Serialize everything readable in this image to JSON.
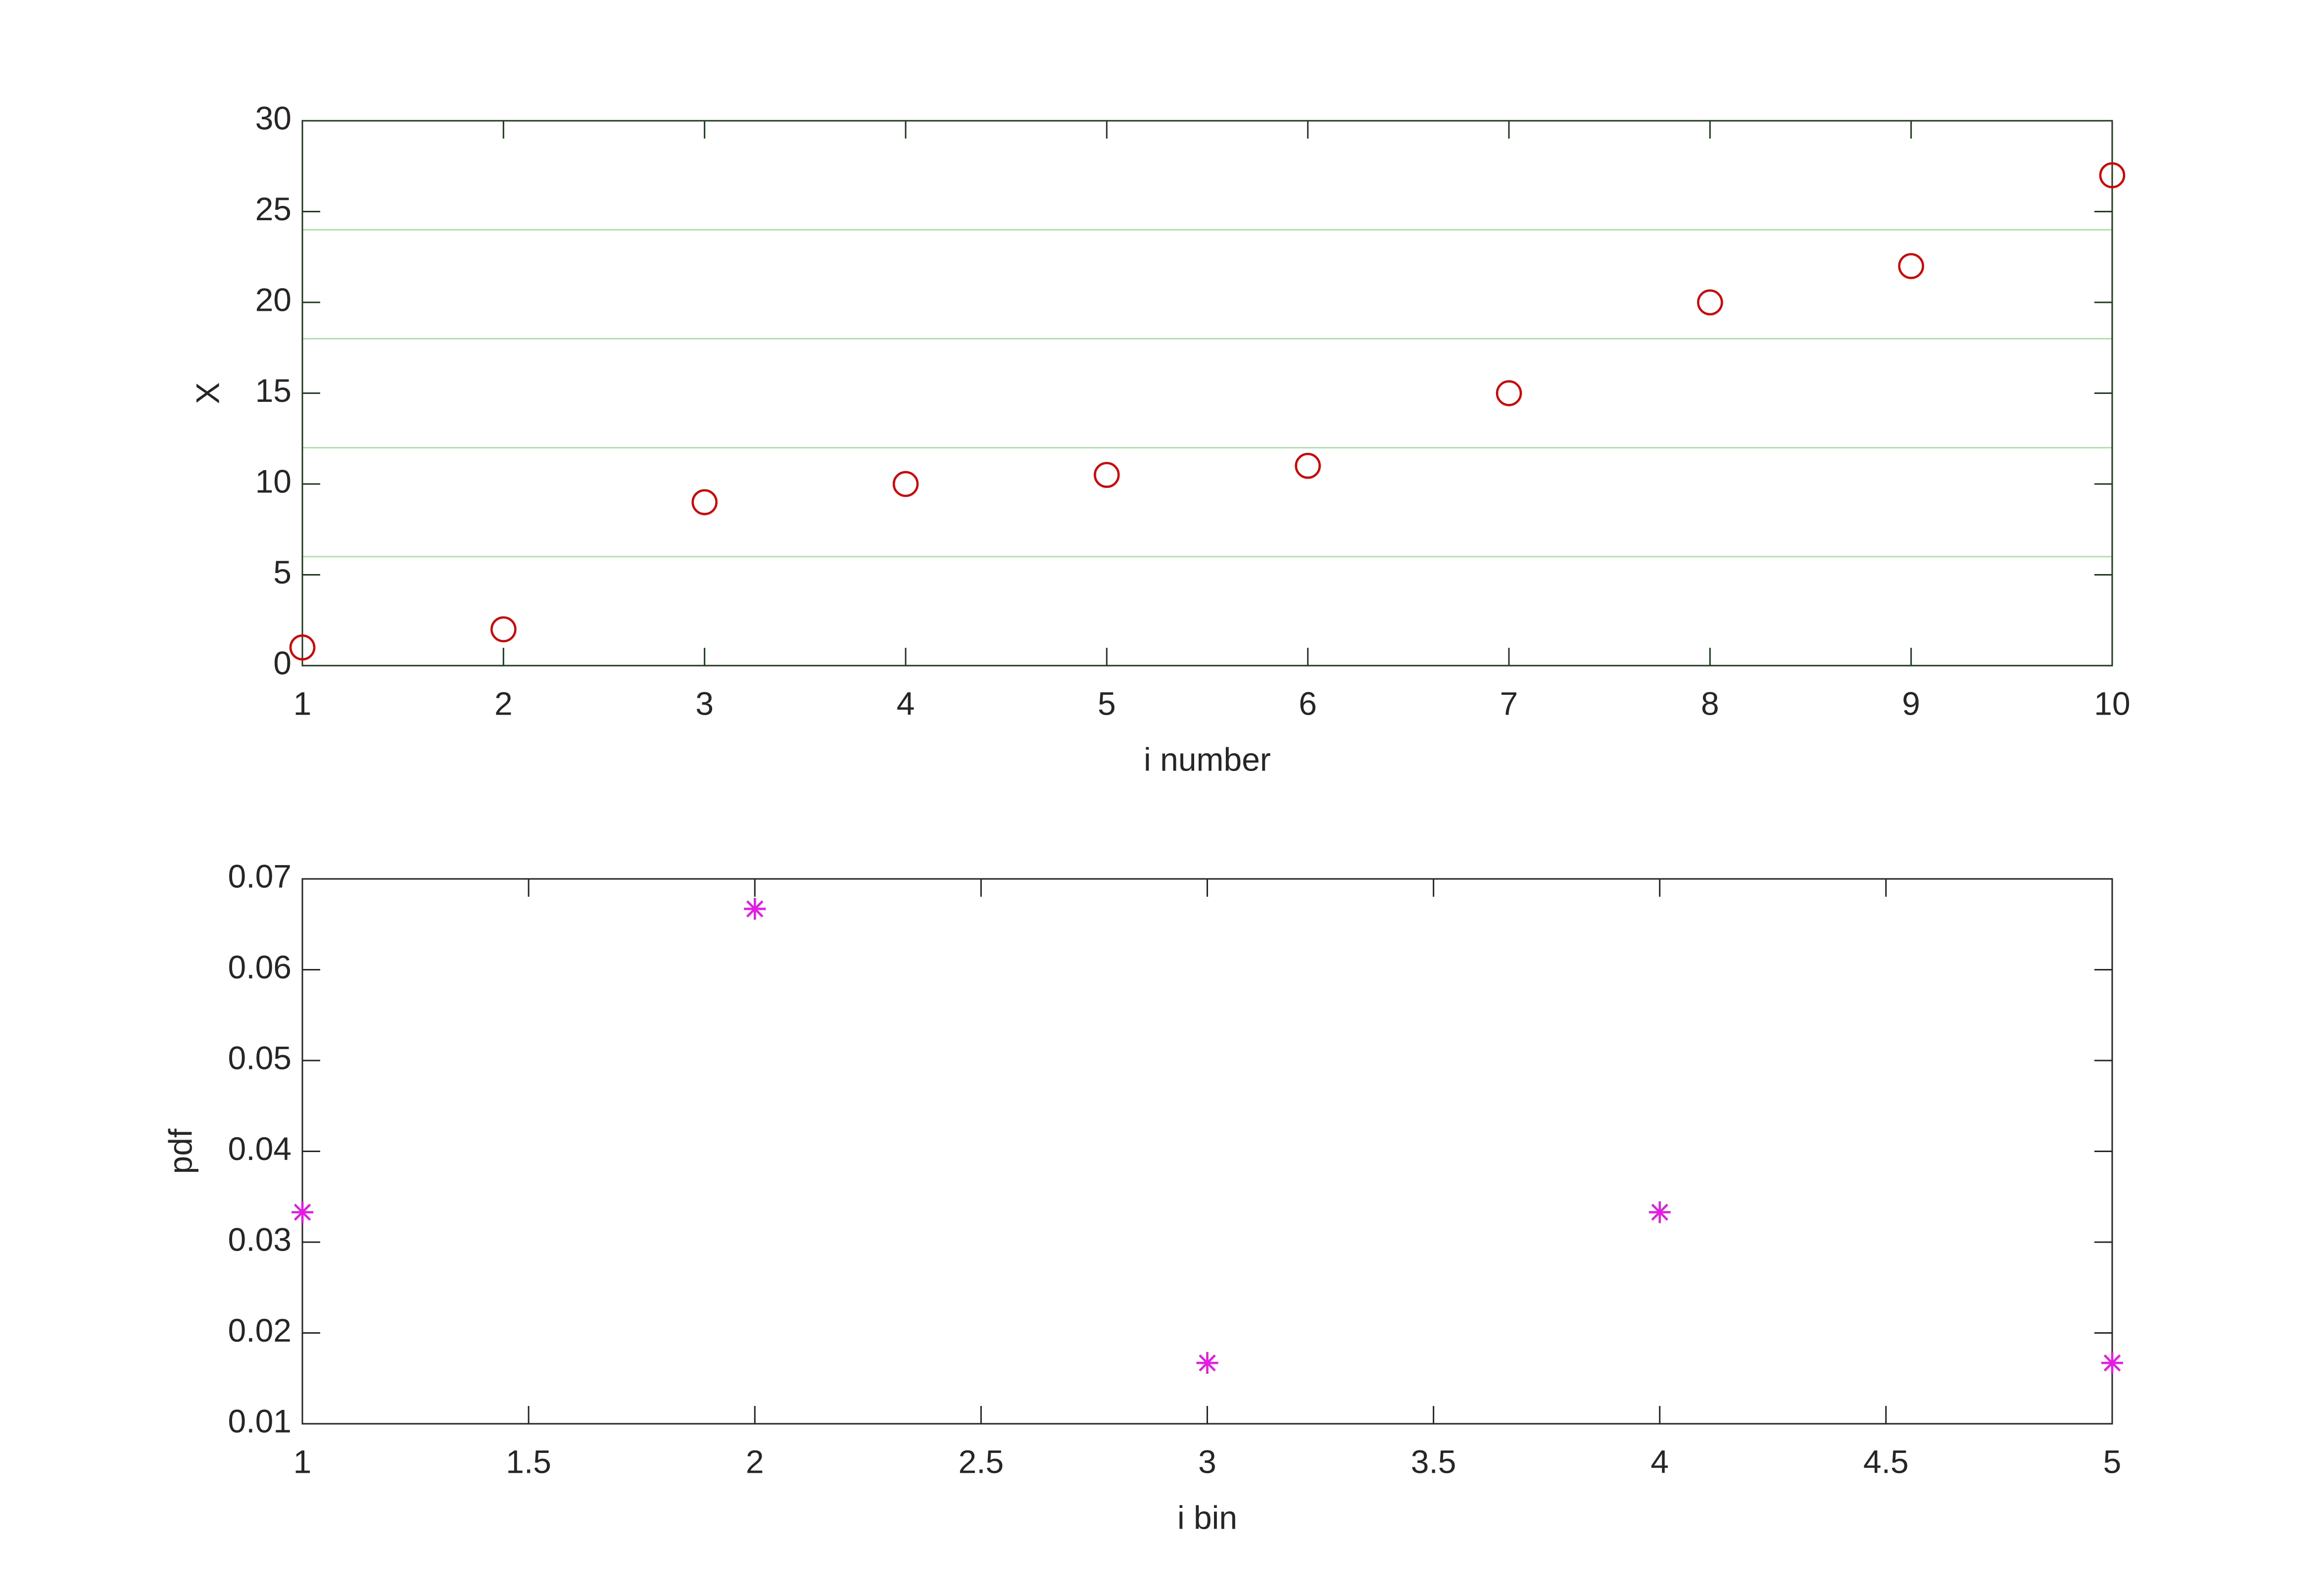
{
  "chart_data": [
    {
      "type": "scatter",
      "x": [
        1,
        2,
        3,
        4,
        5,
        6,
        7,
        8,
        9,
        10
      ],
      "values": [
        1,
        2,
        9,
        10,
        10.5,
        11,
        15,
        20,
        22,
        27
      ],
      "color": "#d40000",
      "marker": "circle",
      "xlabel": "i number",
      "ylabel": "X",
      "xlim": [
        1,
        10
      ],
      "xticks": [
        1,
        2,
        3,
        4,
        5,
        6,
        7,
        8,
        9,
        10
      ],
      "ylim": [
        0,
        30
      ],
      "yticks": [
        0,
        5,
        10,
        15,
        20,
        25,
        30
      ],
      "hlines": [
        6,
        12,
        18,
        24
      ],
      "hline_color": "#a8e6a8",
      "frame_color": "#1f3a1f"
    },
    {
      "type": "scatter",
      "x": [
        1,
        2,
        3,
        4,
        5
      ],
      "values": [
        0.0333,
        0.0667,
        0.0167,
        0.0333,
        0.0167
      ],
      "color": "#e619e6",
      "marker": "star",
      "xlabel": "i bin",
      "ylabel": "pdf",
      "xlim": [
        1,
        5
      ],
      "xticks": [
        1,
        1.5,
        2,
        2.5,
        3,
        3.5,
        4,
        4.5,
        5
      ],
      "ylim": [
        0.01,
        0.07
      ],
      "yticks": [
        0.01,
        0.02,
        0.03,
        0.04,
        0.05,
        0.06,
        0.07
      ],
      "frame_color": "#262626"
    }
  ]
}
